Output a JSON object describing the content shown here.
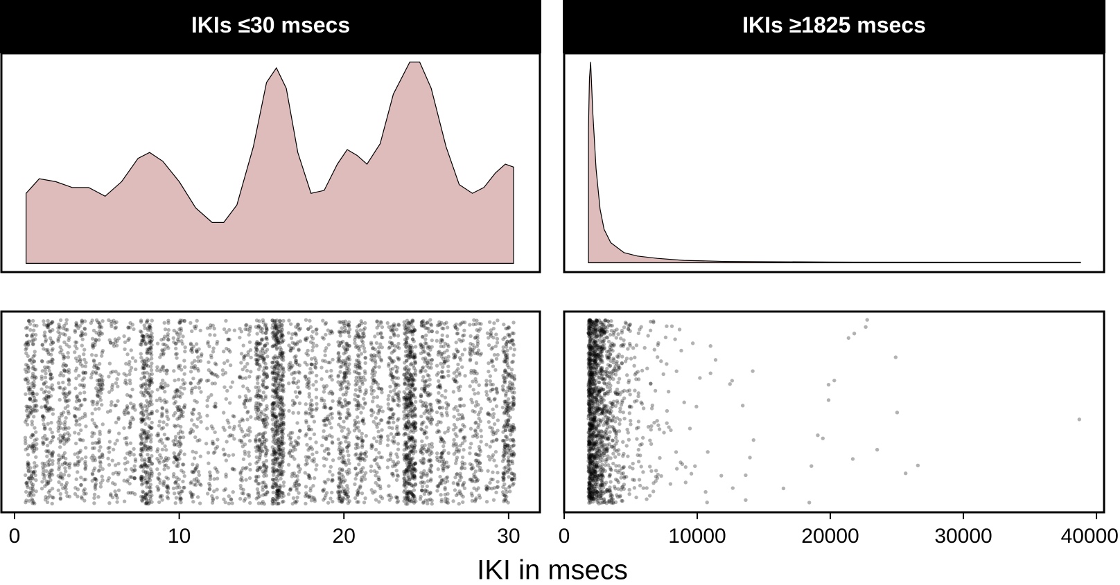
{
  "axis_label": "IKI in msecs",
  "chart_data": [
    {
      "type": "density-strip",
      "title": "IKIs ≤30 msecs",
      "color": "#dfbcbc",
      "xlim": [
        -0.8,
        31.9
      ],
      "xticks": [
        0,
        10,
        20,
        30
      ],
      "ylim": [
        -0.003,
        0.072
      ],
      "density": {
        "x": [
          0.7,
          1.5,
          2.5,
          3.5,
          4.5,
          5.5,
          6.5,
          7.5,
          8.2,
          9,
          10,
          11,
          12,
          12.7,
          13.5,
          14.5,
          15.3,
          15.9,
          16.5,
          17.2,
          18,
          18.8,
          19.6,
          20.2,
          20.8,
          21.4,
          22.2,
          23,
          24,
          24.6,
          25.3,
          26.2,
          27,
          27.8,
          28.5,
          29.2,
          29.8,
          30.3
        ],
        "y": [
          0.024,
          0.029,
          0.028,
          0.026,
          0.026,
          0.023,
          0.028,
          0.036,
          0.038,
          0.035,
          0.028,
          0.019,
          0.014,
          0.014,
          0.02,
          0.04,
          0.062,
          0.067,
          0.06,
          0.038,
          0.024,
          0.025,
          0.034,
          0.039,
          0.037,
          0.034,
          0.041,
          0.058,
          0.069,
          0.069,
          0.06,
          0.04,
          0.027,
          0.024,
          0.026,
          0.031,
          0.034,
          0.033
        ]
      },
      "strip": {
        "values": [
          1,
          2,
          3,
          4,
          5,
          6,
          7,
          8,
          9,
          10,
          11,
          12,
          13,
          14,
          15,
          16,
          17,
          18,
          19,
          20,
          21,
          22,
          23,
          24,
          25,
          26,
          27,
          28,
          29,
          30
        ],
        "counts": [
          200,
          175,
          150,
          125,
          140,
          75,
          90,
          300,
          125,
          150,
          100,
          75,
          60,
          100,
          250,
          450,
          125,
          125,
          100,
          225,
          175,
          125,
          150,
          450,
          200,
          150,
          125,
          125,
          100,
          250
        ]
      }
    },
    {
      "type": "density-strip",
      "title": "IKIs ≥1825 msecs",
      "color": "#dfbcbc",
      "xlim": [
        0,
        40570
      ],
      "xticks": [
        0,
        10000,
        20000,
        30000,
        40000
      ],
      "ylim": [
        -2.8e-05,
        0.000626
      ],
      "density": {
        "x": [
          1825,
          1900,
          1990,
          2150,
          2400,
          2700,
          3000,
          3500,
          4000,
          4500,
          5500,
          7000,
          9000,
          12000,
          20000,
          30000,
          38800
        ],
        "y": [
          0.0004,
          0.00055,
          0.0006,
          0.00045,
          0.00028,
          0.00016,
          0.0001,
          6e-05,
          4.5e-05,
          3e-05,
          2e-05,
          1.3e-05,
          7e-06,
          4e-06,
          2e-06,
          1e-06,
          1e-06
        ]
      },
      "strip": {
        "bins": [
          1825,
          2000,
          2500,
          3000,
          3500,
          4000,
          4500,
          5000,
          6000,
          7000,
          8000,
          9000
        ],
        "counts": [
          300,
          450,
          250,
          150,
          90,
          60,
          40,
          45,
          30,
          20,
          10
        ],
        "outliers": [
          9020,
          10630,
          11000,
          13420,
          14230,
          24910,
          25660,
          11380,
          10740,
          21370,
          26580,
          12460,
          12620,
          16480,
          14170,
          19870,
          23520,
          18580,
          21800,
          13640,
          10790,
          11000,
          18420,
          20300,
          19870,
          19440,
          22660,
          13640,
          13960,
          12670,
          19060,
          38710,
          25020,
          21690,
          22770,
          9830,
          9450,
          9130,
          9560,
          9940,
          11810,
          10200,
          9130,
          9670
        ]
      }
    }
  ]
}
